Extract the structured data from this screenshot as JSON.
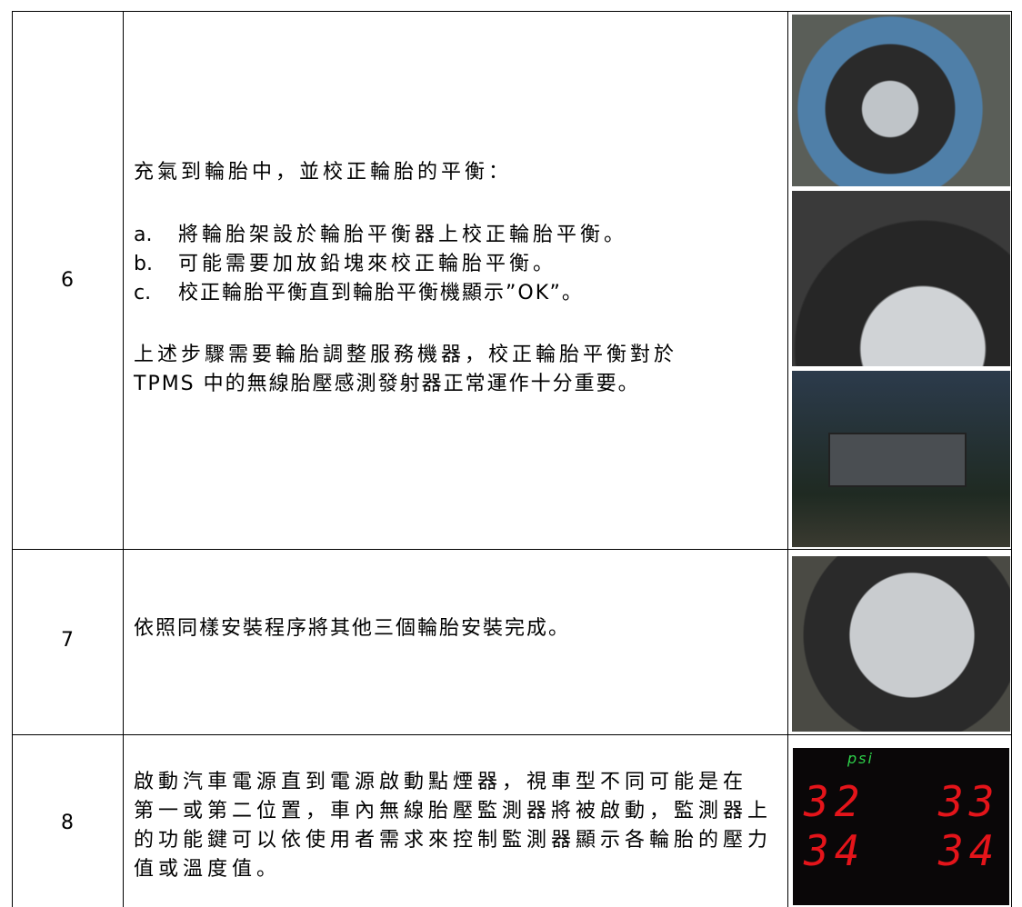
{
  "table": {
    "rows": [
      {
        "step": "6",
        "intro": "充氣到輪胎中，並校正輪胎的平衡：",
        "items": [
          {
            "marker": "a.",
            "text": "將輪胎架設於輪胎平衡器上校正輪胎平衡。"
          },
          {
            "marker": "b.",
            "text": "可能需要加放鉛塊來校正輪胎平衡。"
          },
          {
            "marker": "c.",
            "text": "校正輪胎平衡直到輪胎平衡機顯示”OK”。"
          }
        ],
        "note_lines": [
          "上述步驟需要輪胎調整服務機器，校正輪胎平衡對於",
          "TPMS 中的無線胎壓感測發射器正常運作十分重要。"
        ]
      },
      {
        "step": "7",
        "text": "依照同樣安裝程序將其他三個輪胎安裝完成。"
      },
      {
        "step": "8",
        "lines": [
          "啟動汽車電源直到電源啟動點煙器，視車型不同可能是在",
          "第一或第二位置，車內無線胎壓監測器將被啟動，監測器上",
          "的功能鍵可以依使用者需求來控制監測器顯示各輪胎的壓力",
          "值或溫度值。"
        ],
        "display": {
          "unit": "psi",
          "readings": [
            "32",
            "33",
            "34",
            "34"
          ]
        }
      }
    ]
  }
}
